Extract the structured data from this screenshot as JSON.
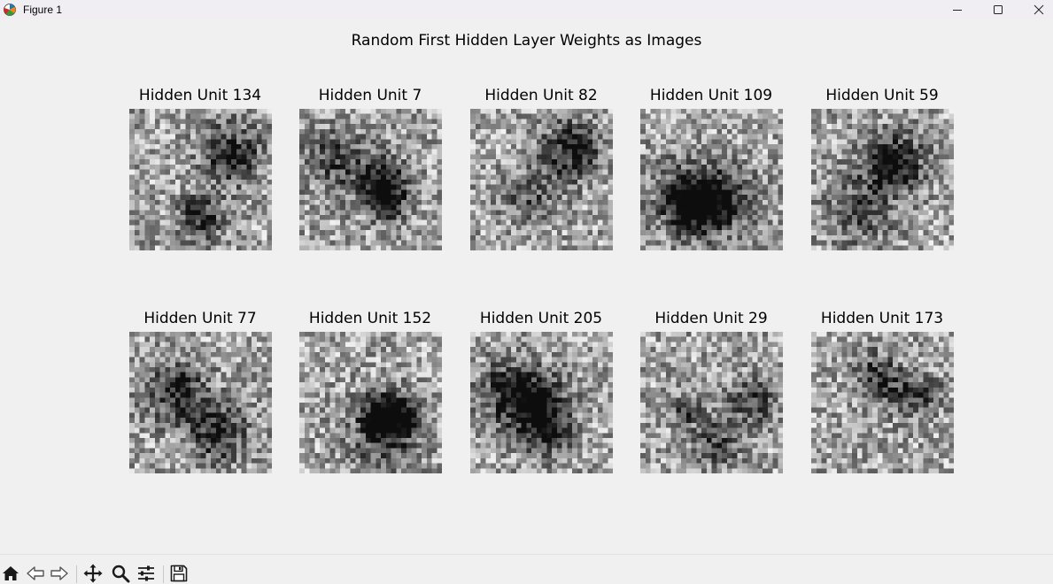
{
  "window": {
    "title": "Figure 1",
    "app_icon": "matplotlib-icon",
    "controls": [
      "minimize-icon",
      "maximize-icon",
      "close-icon"
    ]
  },
  "figure": {
    "suptitle": "Random First Hidden Layer Weights as Images",
    "colormap": "gray",
    "image_shape": [
      28,
      28
    ],
    "subplots": [
      {
        "title": "Hidden Unit 134",
        "seed": 134
      },
      {
        "title": "Hidden Unit 7",
        "seed": 7
      },
      {
        "title": "Hidden Unit 82",
        "seed": 82
      },
      {
        "title": "Hidden Unit 109",
        "seed": 109
      },
      {
        "title": "Hidden Unit 59",
        "seed": 59
      },
      {
        "title": "Hidden Unit 77",
        "seed": 77
      },
      {
        "title": "Hidden Unit 152",
        "seed": 152
      },
      {
        "title": "Hidden Unit 205",
        "seed": 205
      },
      {
        "title": "Hidden Unit 29",
        "seed": 29
      },
      {
        "title": "Hidden Unit 173",
        "seed": 173
      }
    ]
  },
  "toolbar": {
    "tools": [
      "home-icon",
      "back-icon",
      "forward-icon",
      "pan-icon",
      "zoom-icon",
      "configure-subplots-icon",
      "save-icon"
    ]
  },
  "colors": {
    "titlebar": "#f0eef2",
    "canvas": "#f0f0f0",
    "icon": "#1a1a1a"
  }
}
